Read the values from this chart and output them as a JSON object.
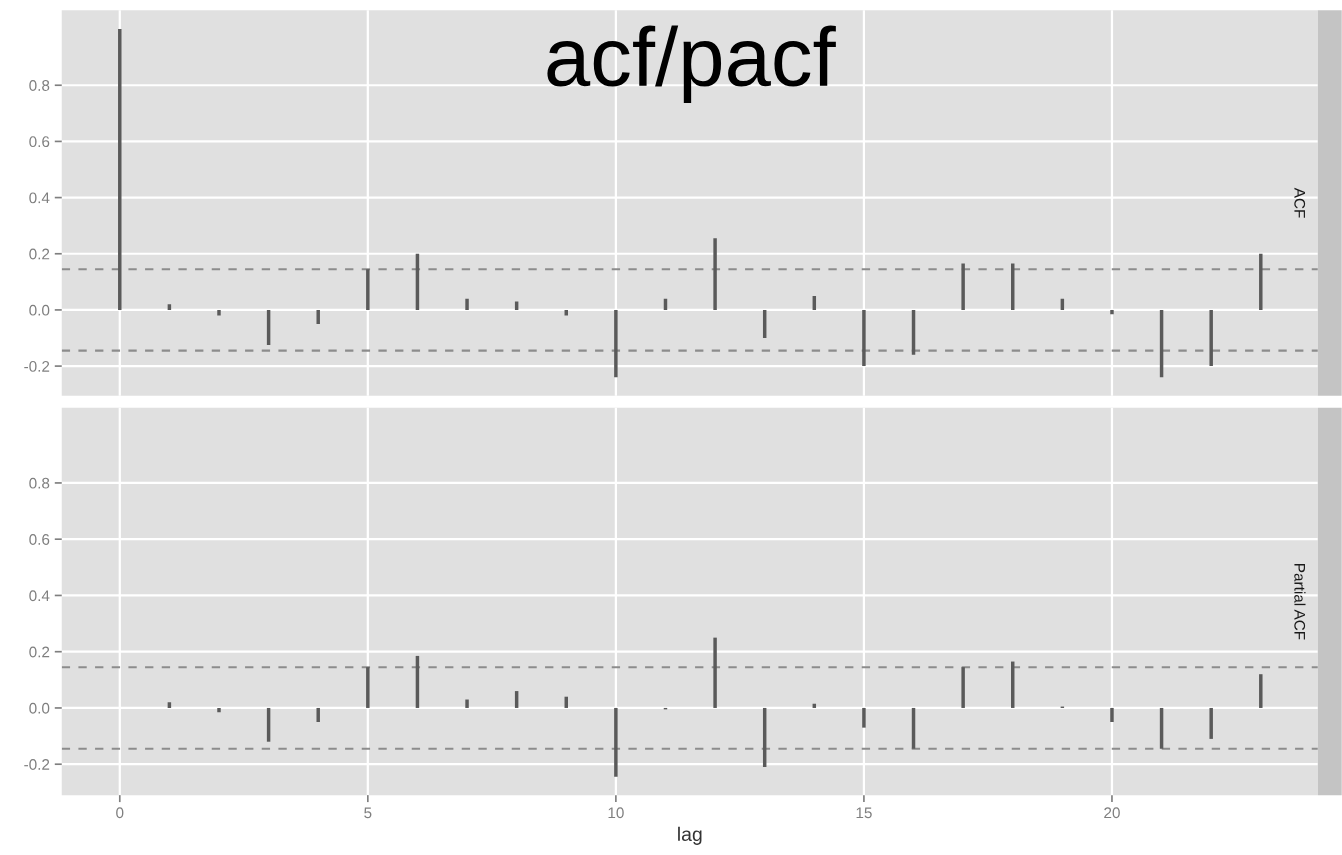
{
  "chart_data": [
    {
      "type": "bar",
      "ylabel": "ACF",
      "annotations": [
        "acf/pacf"
      ],
      "x": [
        0,
        1,
        2,
        3,
        4,
        5,
        6,
        7,
        8,
        9,
        10,
        11,
        12,
        13,
        14,
        15,
        16,
        17,
        18,
        19,
        20,
        21,
        22,
        23
      ],
      "values": [
        1.0,
        0.02,
        -0.02,
        -0.125,
        -0.05,
        0.145,
        0.2,
        0.04,
        0.03,
        -0.02,
        -0.24,
        0.04,
        0.255,
        -0.1,
        0.05,
        -0.2,
        -0.16,
        0.165,
        0.165,
        0.04,
        -0.015,
        -0.24,
        -0.2,
        0.2
      ],
      "color": "#5a5a5a",
      "xlim": [
        -1.17,
        24.15
      ],
      "xticks": [
        0,
        5,
        10,
        15,
        20
      ],
      "ylim": [
        -0.306,
        1.067
      ],
      "yticks": [
        -0.2,
        {
          "value": 0,
          "label": "0.0"
        },
        0.2,
        0.4,
        0.6,
        0.8
      ],
      "ref_lines": [
        {
          "axis": "y",
          "value": 0.145,
          "color": "#8c8c8c",
          "line_style": "dashed"
        },
        {
          "axis": "y",
          "value": -0.145,
          "color": "#8c8c8c",
          "line_style": "dashed"
        }
      ],
      "grid": true,
      "tick_labels": "y"
    },
    {
      "type": "bar",
      "ylabel": "Partial ACF",
      "xlabel": "lag",
      "x": [
        1,
        2,
        3,
        4,
        5,
        6,
        7,
        8,
        9,
        10,
        11,
        12,
        13,
        14,
        15,
        16,
        17,
        18,
        19,
        20,
        21,
        22,
        23
      ],
      "values": [
        0.02,
        -0.015,
        -0.12,
        -0.05,
        0.145,
        0.185,
        0.03,
        0.06,
        0.04,
        -0.245,
        -0.005,
        0.25,
        -0.21,
        0.015,
        -0.07,
        -0.145,
        0.145,
        0.165,
        0.005,
        -0.05,
        -0.145,
        -0.11,
        0.12
      ],
      "color": "#5a5a5a",
      "xlim": [
        -1.17,
        24.15
      ],
      "xticks": [
        0,
        5,
        10,
        15,
        20
      ],
      "ylim": [
        -0.31,
        1.067
      ],
      "yticks": [
        -0.2,
        {
          "value": 0,
          "label": "0.0"
        },
        0.2,
        0.4,
        0.6,
        0.8
      ],
      "ref_lines": [
        {
          "axis": "y",
          "value": 0.145,
          "color": "#8c8c8c",
          "line_style": "dashed"
        },
        {
          "axis": "y",
          "value": -0.145,
          "color": "#8c8c8c",
          "line_style": "dashed"
        }
      ],
      "grid": true
    }
  ]
}
